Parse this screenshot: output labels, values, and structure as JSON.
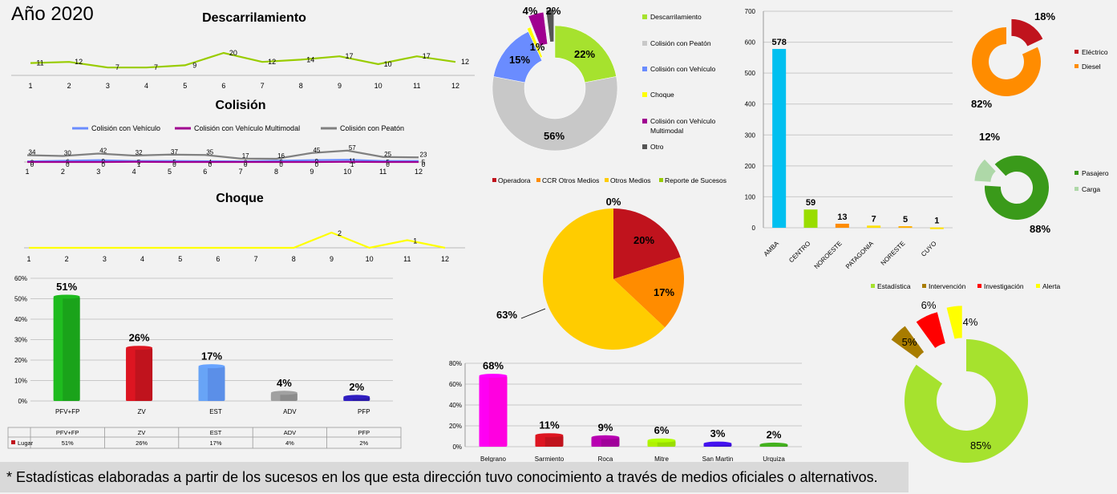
{
  "header": {
    "year_label": "Año 2020"
  },
  "footer": {
    "note": "* Estadísticas elaboradas a partir de los sucesos en los que esta dirección tuvo conocimiento a través de medios oficiales o alternativos."
  },
  "months": [
    "1",
    "2",
    "3",
    "4",
    "5",
    "6",
    "7",
    "8",
    "9",
    "10",
    "11",
    "12"
  ],
  "chart_data": [
    {
      "id": "descarrilamiento",
      "type": "line",
      "title": "Descarrilamiento",
      "categories": [
        "1",
        "2",
        "3",
        "4",
        "5",
        "6",
        "7",
        "8",
        "9",
        "10",
        "11",
        "12"
      ],
      "series": [
        {
          "values": [
            11,
            12,
            7,
            7,
            9,
            20,
            12,
            14,
            17,
            10,
            17,
            12
          ],
          "color": "#99cc00"
        }
      ]
    },
    {
      "id": "colision",
      "type": "line",
      "title": "Colisión",
      "categories": [
        "1",
        "2",
        "3",
        "4",
        "5",
        "6",
        "7",
        "8",
        "9",
        "10",
        "11",
        "12"
      ],
      "series": [
        {
          "name": "Colisión con Vehículo",
          "color": "#6a8cff",
          "values": [
            3,
            6,
            9,
            5,
            5,
            4,
            3,
            6,
            9,
            11,
            5,
            5
          ]
        },
        {
          "name": "Colisión con Vehículo Multimodal",
          "color": "#a00090",
          "values": [
            0,
            0,
            0,
            1,
            0,
            0,
            0,
            0,
            0,
            1,
            0,
            0
          ]
        },
        {
          "name": "Colisión con Peatón",
          "color": "#808080",
          "values": [
            34,
            30,
            42,
            32,
            37,
            35,
            17,
            16,
            45,
            57,
            25,
            23
          ]
        }
      ]
    },
    {
      "id": "choque",
      "type": "line",
      "title": "Choque",
      "categories": [
        "1",
        "2",
        "3",
        "4",
        "5",
        "6",
        "7",
        "8",
        "9",
        "10",
        "11",
        "12"
      ],
      "series": [
        {
          "values": [
            0,
            0,
            0,
            0,
            0,
            0,
            0,
            0,
            2,
            0,
            1,
            0
          ],
          "color": "#ffff00"
        }
      ]
    },
    {
      "id": "lugar",
      "type": "bar",
      "categories": [
        "PFV+FP",
        "ZV",
        "EST",
        "ADV",
        "PFP"
      ],
      "values": [
        51,
        26,
        17,
        4,
        2
      ],
      "value_labels": [
        "51%",
        "26%",
        "17%",
        "4%",
        "2%"
      ],
      "colors": [
        "#1aa31a",
        "#c0131d",
        "#5b8fe8",
        "#8c8c8c",
        "#2a1aa8"
      ],
      "yticks": [
        "0%",
        "10%",
        "20%",
        "30%",
        "40%",
        "50%",
        "60%"
      ],
      "ylim": [
        0,
        60
      ],
      "table": {
        "series_name": "Lugar",
        "values": [
          "51%",
          "26%",
          "17%",
          "4%",
          "2%"
        ]
      }
    },
    {
      "id": "tipo",
      "type": "pie",
      "donut": true,
      "slices": [
        {
          "name": "Descarrilamiento",
          "value": 22,
          "label": "22%",
          "color": "#a6e22e"
        },
        {
          "name": "Colisión con Peatón",
          "value": 56,
          "label": "56%",
          "color": "#c8c8c8"
        },
        {
          "name": "Colisión con Vehículo",
          "value": 15,
          "label": "15%",
          "color": "#6a8cff"
        },
        {
          "name": "Choque",
          "value": 1,
          "label": "1%",
          "color": "#ffff00"
        },
        {
          "name": "Colisión con Vehículo Multimodal",
          "value": 4,
          "label": "4%",
          "color": "#a00090"
        },
        {
          "name": "Otro",
          "value": 2,
          "label": "2%",
          "color": "#555555"
        }
      ]
    },
    {
      "id": "fuente",
      "type": "pie",
      "slices": [
        {
          "name": "Operadora",
          "value": 20,
          "label": "20%",
          "color": "#c0131d"
        },
        {
          "name": "CCR Otros Medios",
          "value": 17,
          "label": "17%",
          "color": "#ff8c00"
        },
        {
          "name": "Otros Medios",
          "value": 63,
          "label": "63%",
          "color": "#ffcc00"
        },
        {
          "name": "Reporte de Sucesos",
          "value": 0,
          "label": "0%",
          "color": "#99cc00"
        }
      ]
    },
    {
      "id": "region",
      "type": "bar",
      "categories": [
        "AMBA",
        "CENTRO",
        "NOROESTE",
        "PATAGONIA",
        "NORESTE",
        "CUYO"
      ],
      "values": [
        578,
        59,
        13,
        7,
        5,
        1
      ],
      "colors": [
        "#00c0f0",
        "#99dd00",
        "#ff8c00",
        "#ffe000",
        "#ffb000",
        "#ffe000"
      ],
      "yticks": [
        "0",
        "100",
        "200",
        "300",
        "400",
        "500",
        "600",
        "700"
      ],
      "ylim": [
        0,
        700
      ]
    },
    {
      "id": "traccion",
      "type": "pie",
      "donut": true,
      "slices": [
        {
          "name": "Eléctrico",
          "value": 18,
          "label": "18%",
          "color": "#c0131d"
        },
        {
          "name": "Diesel",
          "value": 82,
          "label": "82%",
          "color": "#ff8c00"
        }
      ]
    },
    {
      "id": "servicio",
      "type": "pie",
      "donut": true,
      "slices": [
        {
          "name": "Pasajero",
          "value": 88,
          "label": "88%",
          "color": "#3a9a1a"
        },
        {
          "name": "Carga",
          "value": 12,
          "label": "12%",
          "color": "#aed8a8"
        }
      ]
    },
    {
      "id": "linea",
      "type": "bar",
      "categories": [
        "Belgrano",
        "Sarmiento",
        "Roca",
        "Mitre",
        "San Martin",
        "Urquiza"
      ],
      "values": [
        68,
        11,
        9,
        6,
        3,
        2
      ],
      "value_labels": [
        "68%",
        "11%",
        "9%",
        "6%",
        "3%",
        "2%"
      ],
      "colors": [
        "#ff00e0",
        "#c0131d",
        "#a0009a",
        "#99dd00",
        "#3a10d0",
        "#3a9a1a"
      ],
      "yticks": [
        "0%",
        "20%",
        "40%",
        "60%",
        "80%"
      ],
      "ylim": [
        0,
        80
      ]
    },
    {
      "id": "clasificacion",
      "type": "pie",
      "donut": true,
      "slices": [
        {
          "name": "Estadística",
          "value": 85,
          "label": "85%",
          "color": "#a6e22e"
        },
        {
          "name": "Intervención",
          "value": 5,
          "label": "5%",
          "color": "#a87c00"
        },
        {
          "name": "Investigación",
          "value": 6,
          "label": "6%",
          "color": "#ff0000"
        },
        {
          "name": "Alerta",
          "value": 4,
          "label": "4%",
          "color": "#ffff00"
        }
      ]
    }
  ]
}
